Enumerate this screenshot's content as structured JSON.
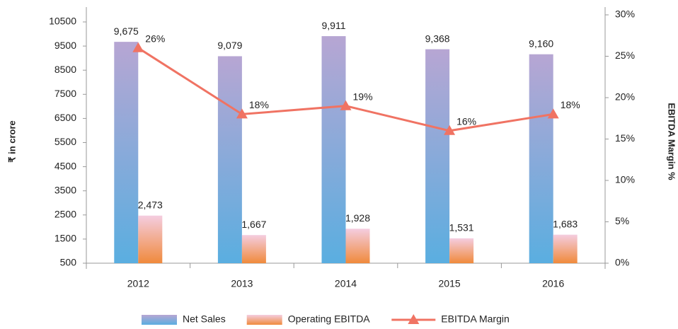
{
  "chart_data": {
    "type": "bar",
    "categories": [
      "2012",
      "2013",
      "2014",
      "2015",
      "2016"
    ],
    "series": [
      {
        "name": "Net Sales",
        "color": [
          "#b7a6d3",
          "#5aaee0"
        ],
        "values": [
          9675,
          9079,
          9911,
          9368,
          9160
        ],
        "value_labels": [
          "9,675",
          "9,079",
          "9,911",
          "9,368",
          "9,160"
        ]
      },
      {
        "name": "Operating EBITDA",
        "color": [
          "#f4cde0",
          "#f08a3c"
        ],
        "values": [
          2473,
          1667,
          1928,
          1531,
          1683
        ],
        "value_labels": [
          "2,473",
          "1,667",
          "1,928",
          "1,531",
          "1,683"
        ]
      },
      {
        "name": "EBITDA Margin",
        "type": "line",
        "axis": "y2",
        "color": "#f07363",
        "values": [
          26,
          18,
          19,
          16,
          18
        ],
        "value_labels": [
          "26%",
          "18%",
          "19%",
          "16%",
          "18%"
        ]
      }
    ],
    "ylabel": "₹ in crore",
    "y2label": "EBITDA Margin %",
    "ylim": [
      500,
      10500
    ],
    "yticks": [
      500,
      1500,
      2500,
      3500,
      4500,
      5500,
      6500,
      7500,
      8500,
      9500,
      10500
    ],
    "y2lim": [
      0,
      30
    ],
    "y2ticks": [
      {
        "value": 0,
        "label": "0%"
      },
      {
        "value": 5,
        "label": "5%"
      },
      {
        "value": 10,
        "label": "10%"
      },
      {
        "value": 15,
        "label": "15%"
      },
      {
        "value": 20,
        "label": "20%"
      },
      {
        "value": 25,
        "label": "25%"
      },
      {
        "value": 30,
        "label": "30%"
      }
    ],
    "legend": "bottom",
    "grid": false
  }
}
